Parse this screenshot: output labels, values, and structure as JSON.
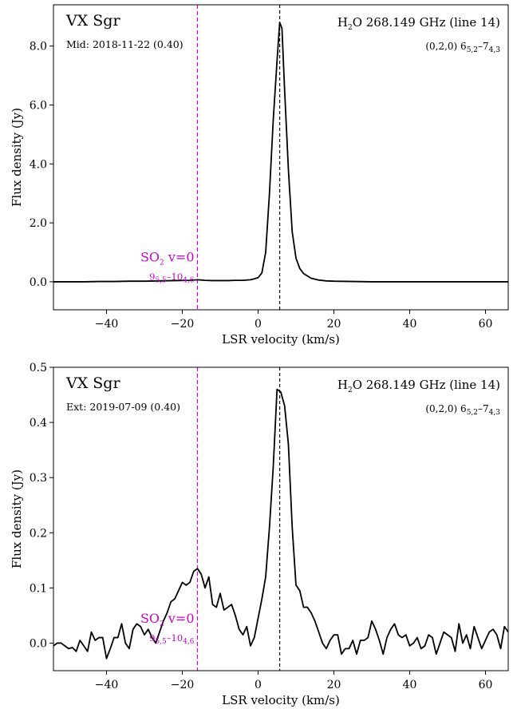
{
  "chart_data": [
    {
      "type": "line",
      "star": "VX Sgr",
      "epoch": "Mid: 2018-11-22 (0.40)",
      "line_title": {
        "mol": "H",
        "sub": "2",
        "rest": "O 268.149 GHz (line 14)"
      },
      "transition": {
        "state": "(0,2,0) 6",
        "sub1": "5,2",
        "dash": "–7",
        "sub2": "4,3"
      },
      "so2_label": {
        "text": "SO",
        "sub": "2",
        "rest": " v=0"
      },
      "so2_transition": {
        "a": "9",
        "sub1": "5,5",
        "dash": "–10",
        "sub2": "4,6"
      },
      "xlabel": "LSR velocity (km/s)",
      "ylabel": "Flux density (Jy)",
      "xlim": [
        -54,
        66
      ],
      "ylim": [
        -0.95,
        9.4
      ],
      "xticks": [
        -40,
        -20,
        0,
        20,
        40,
        60
      ],
      "xtick_labels": [
        "−40",
        "−20",
        "0",
        "20",
        "40",
        "60"
      ],
      "yticks": [
        0,
        2,
        4,
        6,
        8
      ],
      "ytick_labels": [
        "0.0",
        "2.0",
        "4.0",
        "6.0",
        "8.0"
      ],
      "markers": {
        "systemic_velocity": 5.7,
        "so2_velocity": -16.0
      },
      "colors": {
        "spectrum": "#000000",
        "so2": "#cc00cc",
        "systemic": "#000000"
      },
      "x": [
        -54,
        -50,
        -46,
        -42,
        -38,
        -34,
        -30,
        -26,
        -22,
        -18,
        -16,
        -14,
        -12,
        -10,
        -8,
        -6,
        -4,
        -2,
        -1,
        0,
        1,
        2,
        3,
        4,
        5,
        5.7,
        6.3,
        7,
        8,
        9,
        10,
        11,
        12,
        14,
        16,
        18,
        20,
        25,
        30,
        40,
        50,
        60,
        66
      ],
      "y": [
        0.0,
        0.0,
        0.0,
        0.01,
        0.01,
        0.02,
        0.02,
        0.03,
        0.04,
        0.05,
        0.07,
        0.05,
        0.04,
        0.04,
        0.04,
        0.05,
        0.05,
        0.07,
        0.1,
        0.14,
        0.3,
        1.0,
        3.0,
        5.5,
        7.5,
        8.8,
        8.6,
        6.5,
        3.8,
        1.7,
        0.8,
        0.45,
        0.28,
        0.12,
        0.06,
        0.03,
        0.02,
        0.01,
        0.0,
        0.0,
        0.0,
        0.0,
        0.0
      ]
    },
    {
      "type": "line",
      "star": "VX Sgr",
      "epoch": "Ext: 2019-07-09 (0.40)",
      "line_title": {
        "mol": "H",
        "sub": "2",
        "rest": "O 268.149 GHz (line 14)"
      },
      "transition": {
        "state": "(0,2,0) 6",
        "sub1": "5,2",
        "dash": "–7",
        "sub2": "4,3"
      },
      "so2_label": {
        "text": "SO",
        "sub": "2",
        "rest": " v=0"
      },
      "so2_transition": {
        "a": "9",
        "sub1": "5,5",
        "dash": "–10",
        "sub2": "4,6"
      },
      "xlabel": "LSR velocity (km/s)",
      "ylabel": "Flux density (Jy)",
      "xlim": [
        -54,
        66
      ],
      "ylim": [
        -0.05,
        0.5
      ],
      "xticks": [
        -40,
        -20,
        0,
        20,
        40,
        60
      ],
      "xtick_labels": [
        "−40",
        "−20",
        "0",
        "20",
        "40",
        "60"
      ],
      "yticks": [
        0.0,
        0.1,
        0.2,
        0.3,
        0.4,
        0.5
      ],
      "ytick_labels": [
        "0.0",
        "0.1",
        "0.2",
        "0.3",
        "0.4",
        "0.5"
      ],
      "markers": {
        "systemic_velocity": 5.7,
        "so2_velocity": -16.0
      },
      "colors": {
        "spectrum": "#000000",
        "so2": "#cc00cc",
        "systemic": "#000000"
      },
      "x": [
        -54,
        -53,
        -52,
        -51,
        -50,
        -49,
        -48,
        -47,
        -46,
        -45,
        -44,
        -43,
        -42,
        -41,
        -40,
        -39,
        -38,
        -37,
        -36,
        -35,
        -34,
        -33,
        -32,
        -31,
        -30,
        -29,
        -28,
        -27,
        -26,
        -25,
        -24,
        -23,
        -22,
        -21,
        -20,
        -19,
        -18,
        -17,
        -16,
        -15,
        -14,
        -13,
        -12,
        -11,
        -10,
        -9,
        -8,
        -7,
        -6,
        -5,
        -4,
        -3,
        -2,
        -1,
        0,
        1,
        2,
        3,
        4,
        5,
        6,
        7,
        8,
        9,
        10,
        11,
        12,
        13,
        14,
        15,
        16,
        17,
        18,
        19,
        20,
        21,
        22,
        23,
        24,
        25,
        26,
        27,
        28,
        29,
        30,
        31,
        32,
        33,
        34,
        35,
        36,
        37,
        38,
        39,
        40,
        41,
        42,
        43,
        44,
        45,
        46,
        47,
        48,
        49,
        50,
        51,
        52,
        53,
        54,
        55,
        56,
        57,
        58,
        59,
        60,
        61,
        62,
        63,
        64,
        65,
        66
      ],
      "y": [
        -0.005,
        0.0,
        0.0,
        -0.005,
        -0.01,
        -0.008,
        -0.015,
        0.005,
        -0.005,
        -0.015,
        0.02,
        0.005,
        0.01,
        0.01,
        -0.028,
        -0.01,
        0.01,
        0.01,
        0.035,
        0.0,
        -0.01,
        0.025,
        0.035,
        0.03,
        0.015,
        0.025,
        0.01,
        0.0,
        0.02,
        0.04,
        0.055,
        0.075,
        0.08,
        0.095,
        0.11,
        0.105,
        0.11,
        0.13,
        0.135,
        0.125,
        0.1,
        0.12,
        0.07,
        0.065,
        0.09,
        0.06,
        0.065,
        0.07,
        0.05,
        0.025,
        0.015,
        0.03,
        -0.005,
        0.01,
        0.045,
        0.08,
        0.12,
        0.21,
        0.32,
        0.46,
        0.455,
        0.43,
        0.36,
        0.21,
        0.105,
        0.095,
        0.065,
        0.065,
        0.055,
        0.04,
        0.02,
        0.0,
        -0.01,
        0.005,
        0.015,
        0.015,
        -0.02,
        -0.01,
        -0.01,
        0.005,
        -0.02,
        0.005,
        0.005,
        0.01,
        0.04,
        0.025,
        0.005,
        -0.02,
        0.01,
        0.025,
        0.035,
        0.015,
        0.01,
        0.015,
        -0.005,
        0.0,
        0.01,
        -0.01,
        -0.005,
        0.015,
        0.01,
        -0.02,
        0.0,
        0.02,
        0.015,
        0.01,
        -0.015,
        0.035,
        0.0,
        0.015,
        -0.01,
        0.03,
        0.01,
        -0.01,
        0.005,
        0.02,
        0.025,
        0.015,
        -0.01,
        0.03,
        0.02
      ]
    }
  ]
}
